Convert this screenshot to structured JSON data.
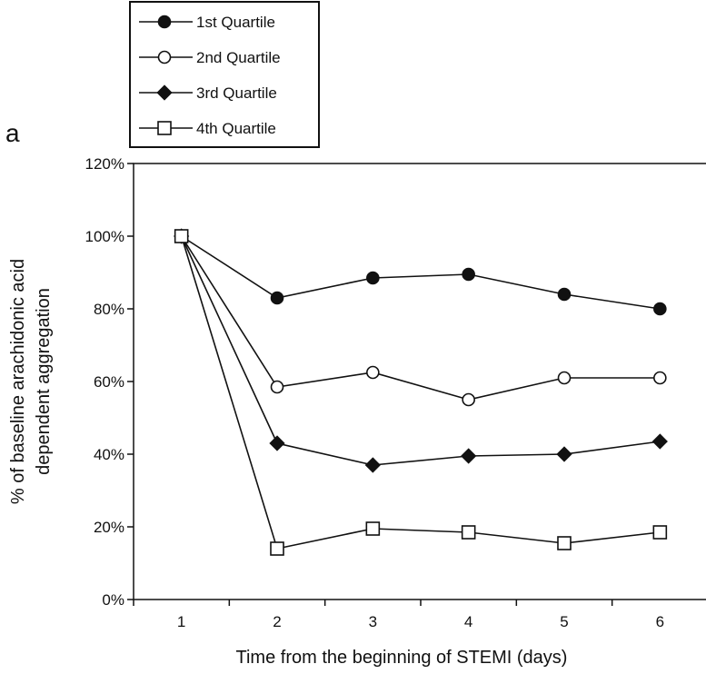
{
  "chart_data": {
    "type": "line",
    "panel_label": "a",
    "xlabel": "Time from the beginning of STEMI (days)",
    "ylabel_lines": [
      "% of baseline arachidonic acid",
      "dependent aggregation"
    ],
    "x": [
      1,
      2,
      3,
      4,
      5,
      6
    ],
    "x_tick_labels": [
      "1",
      "2",
      "3",
      "4",
      "5",
      "6"
    ],
    "xlim": [
      0.5,
      6.5
    ],
    "ylim": [
      0,
      120
    ],
    "y_ticks": [
      0,
      20,
      40,
      60,
      80,
      100,
      120
    ],
    "y_tick_labels": [
      "0%",
      "20%",
      "40%",
      "60%",
      "80%",
      "100%",
      "120%"
    ],
    "grid": false,
    "legend_position": "top-left, above plot",
    "series": [
      {
        "name": "1st Quartile",
        "marker": "filled-circle",
        "values": [
          100,
          83,
          88.5,
          89.5,
          84,
          80
        ]
      },
      {
        "name": "2nd Quartile",
        "marker": "open-circle",
        "values": [
          100,
          58.5,
          62.5,
          55,
          61,
          61
        ]
      },
      {
        "name": "3rd Quartile",
        "marker": "filled-diamond",
        "values": [
          100,
          43,
          37,
          39.5,
          40,
          43.5
        ]
      },
      {
        "name": "4th Quartile",
        "marker": "open-square",
        "values": [
          100,
          14,
          19.5,
          18.5,
          15.5,
          18.5
        ]
      }
    ],
    "colors": {
      "line": "#111111",
      "marker_fill": "#111111",
      "open_fill": "#ffffff"
    }
  }
}
